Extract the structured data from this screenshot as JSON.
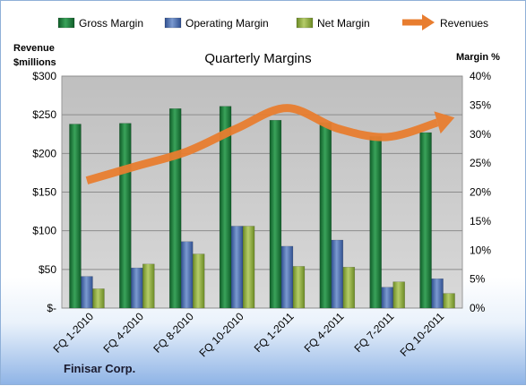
{
  "chart_data": {
    "type": "bar",
    "title": "Quarterly Margins",
    "left_axis_title": [
      "Revenue",
      "$millions"
    ],
    "right_axis_title": "Margin %",
    "footer": "Finisar Corp.",
    "categories": [
      "FQ 1-2010",
      "FQ 4-2010",
      "FQ 8-2010",
      "FQ 10-2010",
      "FQ 1-2011",
      "FQ 4-2011",
      "FQ 7-2011",
      "FQ 10-2011"
    ],
    "y_left": {
      "min": 0,
      "max": 300,
      "step": 50,
      "tick_labels": [
        "$-",
        "$50",
        "$100",
        "$150",
        "$200",
        "$250",
        "$300"
      ]
    },
    "y_right": {
      "min": 0,
      "max": 40,
      "step": 5,
      "tick_labels": [
        "0%",
        "5%",
        "10%",
        "15%",
        "20%",
        "25%",
        "30%",
        "35%",
        "40%"
      ]
    },
    "grid": true,
    "legend_position": "top",
    "series": [
      {
        "name": "Gross Margin",
        "type": "bar",
        "axis": "left",
        "color": "#1f7a3a",
        "values": [
          238,
          239,
          258,
          261,
          243,
          240,
          222,
          227
        ]
      },
      {
        "name": "Operating Margin",
        "type": "bar",
        "axis": "left",
        "color": "#4a6fb0",
        "values": [
          41,
          52,
          86,
          106,
          80,
          88,
          27,
          38
        ]
      },
      {
        "name": "Net Margin",
        "type": "bar",
        "axis": "left",
        "color": "#8aa83a",
        "values": [
          25,
          57,
          70,
          106,
          54,
          53,
          34,
          19
        ]
      },
      {
        "name": "Revenues",
        "type": "line",
        "axis": "right",
        "color": "#e87d2f",
        "values": [
          22,
          24.5,
          27,
          31,
          34.5,
          31,
          29.5,
          32
        ]
      }
    ]
  }
}
